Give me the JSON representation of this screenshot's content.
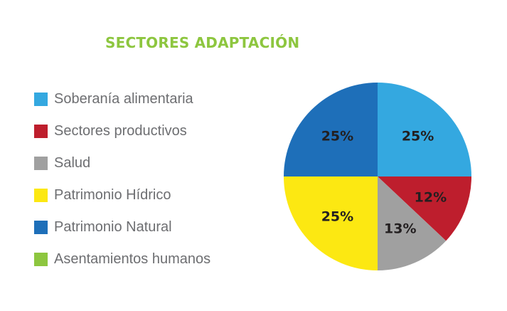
{
  "chart_data": {
    "type": "pie",
    "title": "SECTORES ADAPTACIÓN",
    "title_color": "#8dc63f",
    "legend_position": "left",
    "categories": [
      "Soberanía alimentaria",
      "Sectores productivos",
      "Salud",
      "Patrimonio Hídrico",
      "Patrimonio Natural",
      "Asentamientos humanos"
    ],
    "values": [
      25,
      12,
      13,
      25,
      25,
      0
    ],
    "labels": [
      "25%",
      "12%",
      "13%",
      "25%",
      "25%",
      ""
    ],
    "colors": [
      "#34a8e0",
      "#be1e2d",
      "#a0a0a0",
      "#fce812",
      "#1e6fb9",
      "#8dc63f"
    ]
  }
}
